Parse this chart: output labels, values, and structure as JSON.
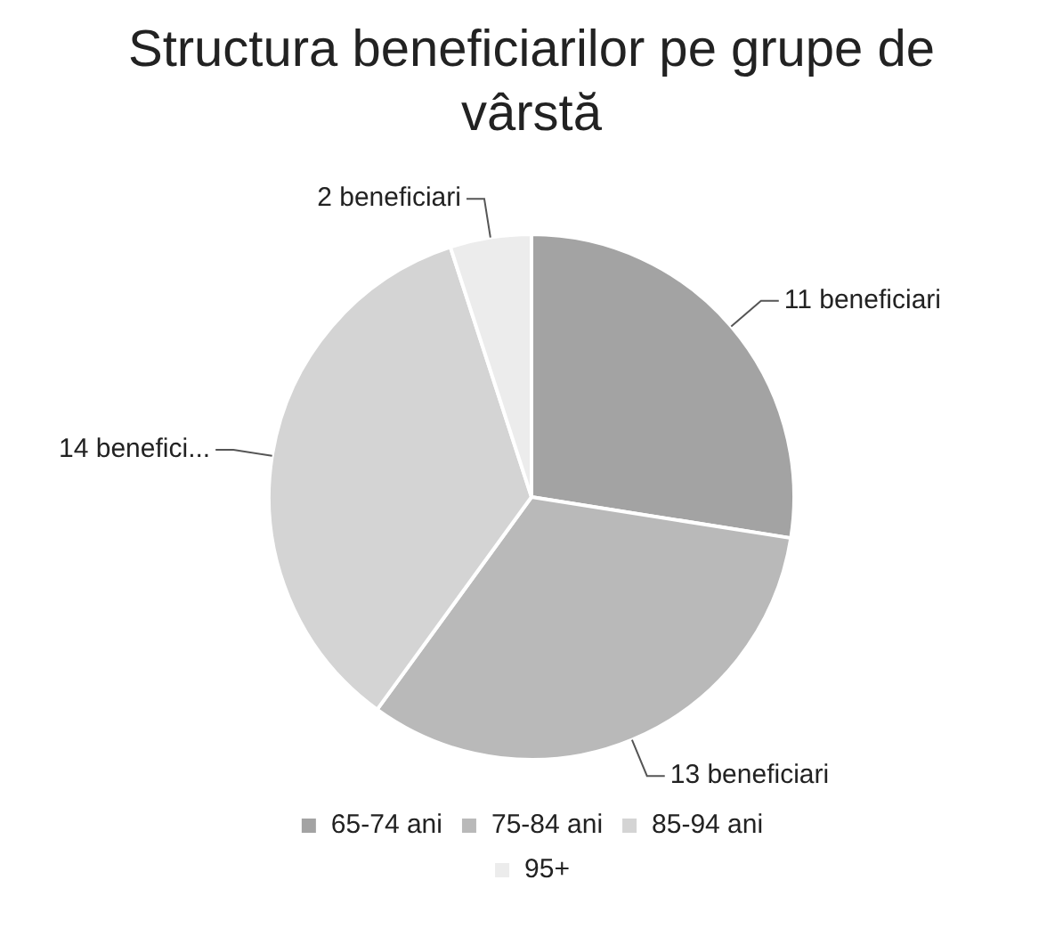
{
  "chart_data": {
    "type": "pie",
    "title": "Structura beneficiarilor pe grupe de vârstă",
    "categories": [
      "65-74 ani",
      "75-84 ani",
      "85-94 ani",
      "95+"
    ],
    "values": [
      11,
      13,
      14,
      2
    ],
    "colors": [
      "#a3a3a3",
      "#b9b9b9",
      "#d4d4d4",
      "#ececec"
    ],
    "value_labels": [
      "11 beneficiari",
      "13 beneficiari",
      "14 benefici...",
      "2 beneficiari"
    ],
    "legend": "bottom"
  }
}
